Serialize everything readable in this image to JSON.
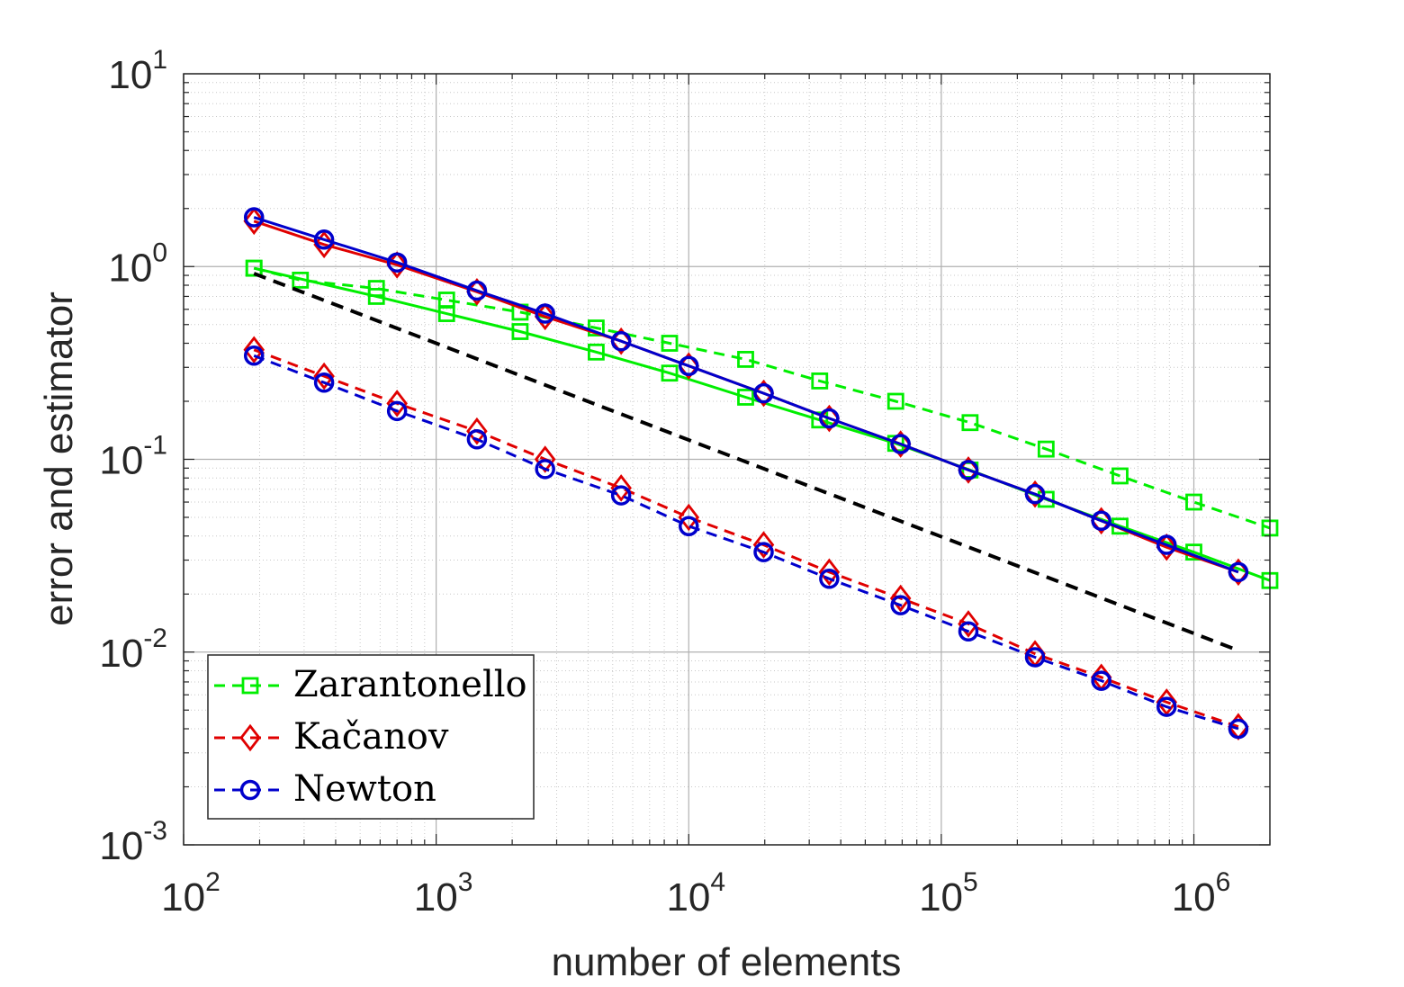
{
  "chart_data": {
    "type": "line",
    "xscale": "log",
    "yscale": "log",
    "xlabel": "number of elements",
    "ylabel": "error and estimator",
    "xlim": [
      100,
      2000000
    ],
    "ylim": [
      0.001,
      10
    ],
    "grid": true,
    "minor_grid": true,
    "x_ticks": [
      {
        "base": "10",
        "exp": "2"
      },
      {
        "base": "10",
        "exp": "3"
      },
      {
        "base": "10",
        "exp": "4"
      },
      {
        "base": "10",
        "exp": "5"
      },
      {
        "base": "10",
        "exp": "6"
      }
    ],
    "y_ticks": [
      {
        "base": "10",
        "exp": "-3"
      },
      {
        "base": "10",
        "exp": "-2"
      },
      {
        "base": "10",
        "exp": "-1"
      },
      {
        "base": "10",
        "exp": "0"
      },
      {
        "base": "10",
        "exp": "1"
      }
    ],
    "legend": {
      "position": "bottom-left",
      "entries": [
        {
          "label": "Zarantonello",
          "color": "#00ee00",
          "marker": "square",
          "line": "dashed"
        },
        {
          "label": "Kačanov",
          "color": "#e00000",
          "marker": "diamond",
          "line": "dashed"
        },
        {
          "label": "Newton",
          "color": "#0000cc",
          "marker": "circle",
          "line": "dashed"
        }
      ]
    },
    "series": [
      {
        "name": "Zarantonello estimator",
        "color": "#00ee00",
        "marker": "square",
        "dashed": false,
        "x": [
          190,
          580,
          1100,
          2150,
          4300,
          8400,
          16800,
          33000,
          66000,
          130000,
          260000,
          510000,
          1000000,
          2000000
        ],
        "y": [
          0.98,
          0.7,
          0.57,
          0.46,
          0.36,
          0.28,
          0.21,
          0.16,
          0.121,
          0.088,
          0.062,
          0.045,
          0.033,
          0.0235
        ]
      },
      {
        "name": "Zarantonello error",
        "color": "#00ee00",
        "marker": "square",
        "dashed": true,
        "x": [
          190,
          290,
          580,
          1100,
          2150,
          4300,
          8400,
          16800,
          33000,
          66000,
          130000,
          260000,
          510000,
          1000000,
          2000000
        ],
        "y": [
          0.98,
          0.85,
          0.77,
          0.67,
          0.58,
          0.48,
          0.4,
          0.33,
          0.255,
          0.2,
          0.155,
          0.113,
          0.082,
          0.06,
          0.044
        ]
      },
      {
        "name": "Kačanov estimator",
        "color": "#e00000",
        "marker": "diamond",
        "dashed": false,
        "x": [
          190,
          360,
          700,
          1450,
          2700,
          5400,
          10000,
          19800,
          36000,
          69000,
          128000,
          235000,
          430000,
          780000,
          1500000
        ],
        "y": [
          1.72,
          1.3,
          1.02,
          0.74,
          0.55,
          0.41,
          0.305,
          0.22,
          0.163,
          0.12,
          0.088,
          0.066,
          0.048,
          0.035,
          0.026
        ]
      },
      {
        "name": "Kačanov error",
        "color": "#e00000",
        "marker": "diamond",
        "dashed": true,
        "x": [
          190,
          360,
          700,
          1450,
          2700,
          5400,
          10000,
          19800,
          36000,
          69000,
          128000,
          235000,
          430000,
          780000,
          1500000
        ],
        "y": [
          0.37,
          0.27,
          0.195,
          0.14,
          0.1,
          0.071,
          0.05,
          0.036,
          0.026,
          0.019,
          0.014,
          0.0098,
          0.0074,
          0.0055,
          0.0041
        ]
      },
      {
        "name": "Newton estimator",
        "color": "#0000cc",
        "marker": "circle",
        "dashed": false,
        "x": [
          190,
          360,
          700,
          1450,
          2700,
          5400,
          10000,
          19800,
          36000,
          69000,
          128000,
          235000,
          430000,
          780000,
          1500000
        ],
        "y": [
          1.8,
          1.38,
          1.05,
          0.75,
          0.57,
          0.41,
          0.305,
          0.22,
          0.163,
          0.12,
          0.088,
          0.066,
          0.048,
          0.036,
          0.026
        ]
      },
      {
        "name": "Newton error",
        "color": "#0000cc",
        "marker": "circle",
        "dashed": true,
        "x": [
          190,
          360,
          700,
          1450,
          2700,
          5400,
          10000,
          19800,
          36000,
          69000,
          128000,
          235000,
          430000,
          780000,
          1500000
        ],
        "y": [
          0.345,
          0.25,
          0.178,
          0.127,
          0.089,
          0.065,
          0.045,
          0.033,
          0.024,
          0.0175,
          0.0128,
          0.0094,
          0.0071,
          0.0052,
          0.004
        ]
      },
      {
        "name": "reference slope",
        "color": "#000000",
        "marker": "none",
        "dashed": true,
        "x": [
          190,
          1500000
        ],
        "y": [
          0.92,
          0.0102
        ]
      }
    ]
  }
}
